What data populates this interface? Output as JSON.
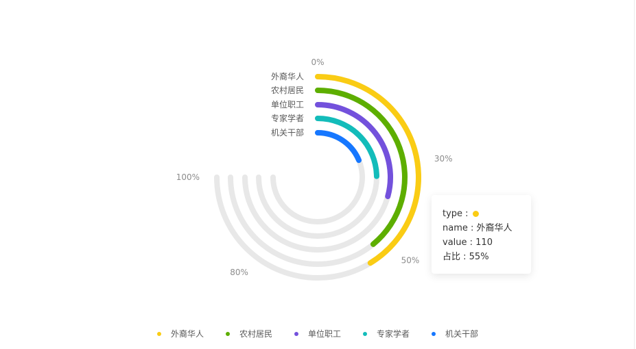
{
  "chart_data": {
    "type": "radial-bar",
    "start_angle_label": "0%",
    "ticks": [
      "0%",
      "30%",
      "50%",
      "80%",
      "100%"
    ],
    "tick_values": [
      0,
      0.3,
      0.5,
      0.8,
      1.0
    ],
    "track_span": 1.0,
    "series": [
      {
        "name": "外裔华人",
        "ratio": 0.55,
        "color": "#FACC14"
      },
      {
        "name": "农村居民",
        "ratio": 0.52,
        "color": "#5DAE00"
      },
      {
        "name": "单位职工",
        "ratio": 0.39,
        "color": "#7351DC"
      },
      {
        "name": "专家学者",
        "ratio": 0.33,
        "color": "#13BCBA"
      },
      {
        "name": "机关干部",
        "ratio": 0.25,
        "color": "#1677FF"
      }
    ],
    "track_color": "#E8E8E8"
  },
  "tooltip": {
    "type_label": "type : ",
    "type_color": "#FACC14",
    "name_label": "name : ",
    "name_value": "外裔华人",
    "value_label": "value : ",
    "value_value": "110",
    "ratio_label": "占比 : ",
    "ratio_value": "55%"
  },
  "legend": [
    {
      "label": "外裔华人",
      "color": "#FACC14"
    },
    {
      "label": "农村居民",
      "color": "#5DAE00"
    },
    {
      "label": "单位职工",
      "color": "#7351DC"
    },
    {
      "label": "专家学者",
      "color": "#13BCBA"
    },
    {
      "label": "机关干部",
      "color": "#1677FF"
    }
  ]
}
